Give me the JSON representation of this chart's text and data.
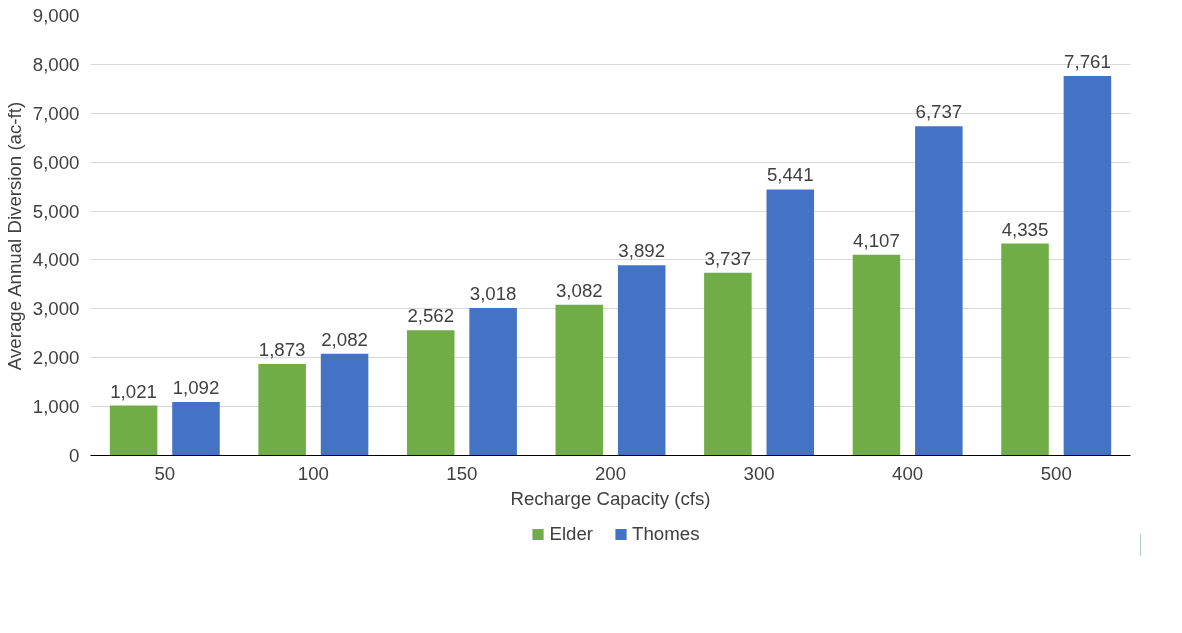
{
  "chart_data": {
    "type": "bar",
    "xlabel": "Recharge Capacity (cfs)",
    "ylabel": "Average Annual Diversion (ac-ft)",
    "categories": [
      "50",
      "100",
      "150",
      "200",
      "300",
      "400",
      "500"
    ],
    "series": [
      {
        "name": "Elder",
        "color": "#70ad47",
        "values": [
          1021,
          1873,
          2562,
          3082,
          3737,
          4107,
          4335
        ],
        "value_labels": [
          "1,021",
          "1,873",
          "2,562",
          "3,082",
          "3,737",
          "4,107",
          "4,335"
        ]
      },
      {
        "name": "Thomes",
        "color": "#4472c4",
        "values": [
          1092,
          2082,
          3018,
          3892,
          5441,
          6737,
          7761
        ],
        "value_labels": [
          "1,092",
          "2,082",
          "3,018",
          "3,892",
          "5,441",
          "6,737",
          "7,761"
        ]
      }
    ],
    "ylim": [
      0,
      9000
    ],
    "yticks": [
      0,
      {
        "value": 1000,
        "label": "1,000"
      },
      {
        "value": 2000,
        "label": "2,000"
      },
      {
        "value": 3000,
        "label": "3,000"
      },
      {
        "value": 4000,
        "label": "4,000"
      },
      {
        "value": 5000,
        "label": "5,000"
      },
      {
        "value": 6000,
        "label": "6,000"
      },
      {
        "value": 7000,
        "label": "7,000"
      },
      {
        "value": 8000,
        "label": "8,000"
      },
      {
        "value": 9000,
        "label": "9,000"
      }
    ],
    "grid": "y",
    "legend": "bottom"
  }
}
